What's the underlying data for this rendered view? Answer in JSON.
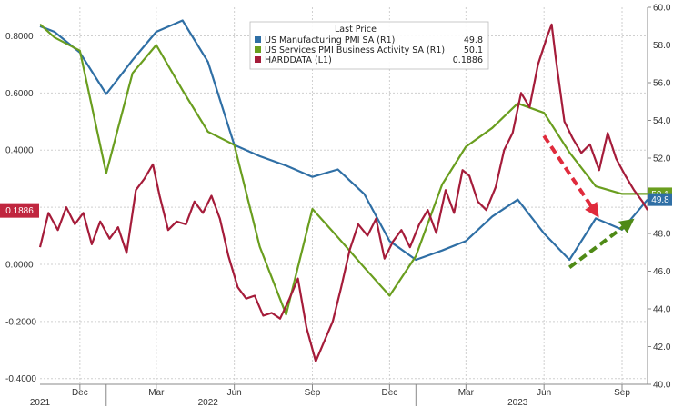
{
  "chart_data": {
    "type": "line",
    "title": "",
    "xlabel": "",
    "ylabel": "",
    "x_ticks": [
      {
        "label": "Dec",
        "date": "2021-12-01"
      },
      {
        "label": "Mar",
        "date": "2022-03-01"
      },
      {
        "label": "Jun",
        "date": "2022-06-01"
      },
      {
        "label": "Sep",
        "date": "2022-09-01"
      },
      {
        "label": "Dec",
        "date": "2022-12-01"
      },
      {
        "label": "Mar",
        "date": "2023-03-01"
      },
      {
        "label": "Jun",
        "date": "2023-06-01"
      },
      {
        "label": "Sep",
        "date": "2023-09-01"
      }
    ],
    "x_years": [
      {
        "label": "2021",
        "date": "2021-10-15"
      },
      {
        "label": "2022",
        "date": "2022-05-01"
      },
      {
        "label": "2023",
        "date": "2023-05-01"
      }
    ],
    "x_range": [
      "2021-10-15",
      "2023-10-01"
    ],
    "y_left": {
      "ticks": [
        "0.8000",
        "0.6000",
        "0.4000",
        "0.2000",
        "0.0000",
        "-0.2000",
        "-0.4000"
      ],
      "range": [
        -0.42,
        0.9
      ]
    },
    "y_right": {
      "ticks": [
        "60.0",
        "58.0",
        "56.0",
        "54.0",
        "52.0",
        "50.0",
        "48.0",
        "46.0",
        "44.0",
        "42.0",
        "40.0"
      ],
      "range": [
        40.0,
        60.0
      ]
    },
    "grid": true,
    "legend": {
      "placement": "top-center",
      "header": "Last Price",
      "entries": [
        {
          "name": "US Manufacturing PMI SA  (R1)",
          "last": "49.8",
          "color": "#2f6fa5"
        },
        {
          "name": "US Services PMI Business Activity SA  (R1)",
          "last": "50.1",
          "color": "#6a9e1f"
        },
        {
          "name": "HARDDATA  (L1)",
          "last": "0.1886",
          "color": "#a51c3a"
        }
      ]
    },
    "badges": [
      {
        "axis": "left",
        "text": "0.1886",
        "value": 0.1886,
        "bg": "#c0263f",
        "fg": "#ffffff"
      },
      {
        "axis": "right",
        "text": "50.1",
        "value": 50.1,
        "bg": "#6a9e1f",
        "fg": "#ffffff"
      },
      {
        "axis": "right",
        "text": "49.8",
        "value": 49.8,
        "bg": "#2f6fa5",
        "fg": "#ffffff"
      }
    ],
    "arrows": [
      {
        "color": "#e02b3c",
        "from": [
          "2023-06-01",
          0.45
        ],
        "to": [
          "2023-08-01",
          0.18
        ]
      },
      {
        "color": "#4f8a16",
        "from": [
          "2023-07-01",
          46.2
        ],
        "to": [
          "2023-09-10",
          48.6
        ]
      }
    ],
    "series": [
      {
        "name": "US Manufacturing PMI SA  (R1)",
        "axis": "right",
        "color": "#2f6fa5",
        "points": [
          [
            "2021-10-15",
            59.0
          ],
          [
            "2021-11-01",
            58.7
          ],
          [
            "2021-12-01",
            57.6
          ],
          [
            "2022-01-01",
            55.4
          ],
          [
            "2022-02-01",
            57.2
          ],
          [
            "2022-03-01",
            58.7
          ],
          [
            "2022-04-01",
            59.3
          ],
          [
            "2022-05-01",
            57.1
          ],
          [
            "2022-06-01",
            52.7
          ],
          [
            "2022-07-01",
            52.1
          ],
          [
            "2022-08-01",
            51.6
          ],
          [
            "2022-09-01",
            51.0
          ],
          [
            "2022-10-01",
            51.4
          ],
          [
            "2022-11-01",
            50.1
          ],
          [
            "2022-12-01",
            47.6
          ],
          [
            "2023-01-01",
            46.6
          ],
          [
            "2023-02-01",
            47.1
          ],
          [
            "2023-03-01",
            47.6
          ],
          [
            "2023-04-01",
            48.9
          ],
          [
            "2023-05-01",
            49.8
          ],
          [
            "2023-06-01",
            48.0
          ],
          [
            "2023-07-01",
            46.6
          ],
          [
            "2023-08-01",
            48.8
          ],
          [
            "2023-09-01",
            48.2
          ],
          [
            "2023-10-01",
            49.8
          ]
        ]
      },
      {
        "name": "US Services PMI Business Activity SA  (R1)",
        "axis": "right",
        "color": "#6a9e1f",
        "points": [
          [
            "2021-10-15",
            59.1
          ],
          [
            "2021-11-01",
            58.4
          ],
          [
            "2021-12-01",
            57.7
          ],
          [
            "2022-01-01",
            51.2
          ],
          [
            "2022-02-01",
            56.5
          ],
          [
            "2022-03-01",
            58.0
          ],
          [
            "2022-04-01",
            55.6
          ],
          [
            "2022-05-01",
            53.4
          ],
          [
            "2022-06-01",
            52.7
          ],
          [
            "2022-07-01",
            47.3
          ],
          [
            "2022-08-01",
            43.7
          ],
          [
            "2022-09-01",
            49.3
          ],
          [
            "2022-10-01",
            47.8
          ],
          [
            "2022-11-01",
            46.2
          ],
          [
            "2022-12-01",
            44.7
          ],
          [
            "2023-01-01",
            46.8
          ],
          [
            "2023-02-01",
            50.6
          ],
          [
            "2023-03-01",
            52.6
          ],
          [
            "2023-04-01",
            53.6
          ],
          [
            "2023-05-01",
            54.9
          ],
          [
            "2023-06-01",
            54.4
          ],
          [
            "2023-07-01",
            52.3
          ],
          [
            "2023-08-01",
            50.5
          ],
          [
            "2023-09-01",
            50.1
          ],
          [
            "2023-10-01",
            50.1
          ]
        ]
      },
      {
        "name": "HARDDATA  (L1)",
        "axis": "left",
        "color": "#a51c3a",
        "points": [
          [
            "2021-10-15",
            0.06
          ],
          [
            "2021-10-25",
            0.18
          ],
          [
            "2021-11-05",
            0.12
          ],
          [
            "2021-11-15",
            0.2
          ],
          [
            "2021-11-25",
            0.14
          ],
          [
            "2021-12-05",
            0.18
          ],
          [
            "2021-12-15",
            0.07
          ],
          [
            "2021-12-25",
            0.15
          ],
          [
            "2022-01-05",
            0.09
          ],
          [
            "2022-01-15",
            0.13
          ],
          [
            "2022-01-25",
            0.04
          ],
          [
            "2022-02-05",
            0.26
          ],
          [
            "2022-02-15",
            0.3
          ],
          [
            "2022-02-25",
            0.35
          ],
          [
            "2022-03-05",
            0.24
          ],
          [
            "2022-03-15",
            0.12
          ],
          [
            "2022-03-25",
            0.15
          ],
          [
            "2022-04-05",
            0.14
          ],
          [
            "2022-04-15",
            0.22
          ],
          [
            "2022-04-25",
            0.18
          ],
          [
            "2022-05-05",
            0.24
          ],
          [
            "2022-05-15",
            0.16
          ],
          [
            "2022-05-25",
            0.03
          ],
          [
            "2022-06-05",
            -0.08
          ],
          [
            "2022-06-15",
            -0.12
          ],
          [
            "2022-06-25",
            -0.11
          ],
          [
            "2022-07-05",
            -0.18
          ],
          [
            "2022-07-15",
            -0.17
          ],
          [
            "2022-07-25",
            -0.19
          ],
          [
            "2022-08-05",
            -0.12
          ],
          [
            "2022-08-15",
            -0.05
          ],
          [
            "2022-08-25",
            -0.22
          ],
          [
            "2022-09-05",
            -0.34
          ],
          [
            "2022-09-15",
            -0.27
          ],
          [
            "2022-09-25",
            -0.2
          ],
          [
            "2022-10-05",
            -0.08
          ],
          [
            "2022-10-15",
            0.05
          ],
          [
            "2022-10-25",
            0.14
          ],
          [
            "2022-11-05",
            0.1
          ],
          [
            "2022-11-15",
            0.16
          ],
          [
            "2022-11-25",
            0.02
          ],
          [
            "2022-12-05",
            0.08
          ],
          [
            "2022-12-15",
            0.12
          ],
          [
            "2022-12-25",
            0.06
          ],
          [
            "2023-01-05",
            0.14
          ],
          [
            "2023-01-15",
            0.19
          ],
          [
            "2023-01-25",
            0.11
          ],
          [
            "2023-02-05",
            0.26
          ],
          [
            "2023-02-15",
            0.18
          ],
          [
            "2023-02-25",
            0.33
          ],
          [
            "2023-03-05",
            0.31
          ],
          [
            "2023-03-15",
            0.22
          ],
          [
            "2023-03-25",
            0.19
          ],
          [
            "2023-04-05",
            0.27
          ],
          [
            "2023-04-15",
            0.4
          ],
          [
            "2023-04-25",
            0.46
          ],
          [
            "2023-05-05",
            0.6
          ],
          [
            "2023-05-15",
            0.55
          ],
          [
            "2023-05-25",
            0.7
          ],
          [
            "2023-06-05",
            0.8
          ],
          [
            "2023-06-10",
            0.84
          ],
          [
            "2023-06-15",
            0.72
          ],
          [
            "2023-06-25",
            0.5
          ],
          [
            "2023-07-05",
            0.44
          ],
          [
            "2023-07-15",
            0.39
          ],
          [
            "2023-07-25",
            0.42
          ],
          [
            "2023-08-05",
            0.33
          ],
          [
            "2023-08-15",
            0.46
          ],
          [
            "2023-08-25",
            0.37
          ],
          [
            "2023-09-05",
            0.31
          ],
          [
            "2023-09-15",
            0.26
          ],
          [
            "2023-09-25",
            0.22
          ],
          [
            "2023-10-01",
            0.19
          ]
        ]
      }
    ]
  }
}
